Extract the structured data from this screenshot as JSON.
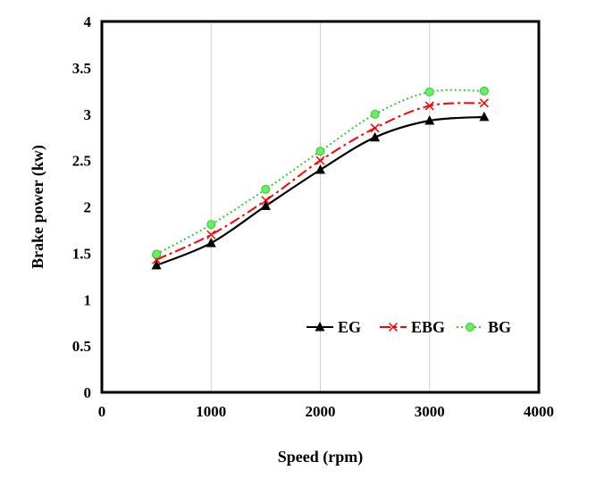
{
  "chart_data": {
    "type": "line",
    "xlabel": "Speed (rpm)",
    "ylabel": "Brake power (kw)",
    "xlim": [
      0,
      4000
    ],
    "ylim": [
      0,
      4
    ],
    "x_ticks": [
      "0",
      "1000",
      "2000",
      "3000",
      "4000"
    ],
    "y_ticks": [
      "0",
      "0.5",
      "1",
      "1.5",
      "2",
      "2.5",
      "3",
      "3.5",
      "4"
    ],
    "grid": "vertical",
    "legend_position": "bottom-right",
    "x": [
      500,
      1000,
      1500,
      2000,
      2500,
      3000,
      3500
    ],
    "series": [
      {
        "name": "EG",
        "values": [
          1.37,
          1.61,
          2.01,
          2.4,
          2.75,
          2.93,
          2.97
        ],
        "color": "#000000",
        "marker": "triangle",
        "line": "solid"
      },
      {
        "name": "EBG",
        "values": [
          1.43,
          1.7,
          2.07,
          2.5,
          2.85,
          3.09,
          3.12
        ],
        "color": "#ff0000",
        "marker": "x",
        "line": "dash-dot"
      },
      {
        "name": "BG",
        "values": [
          1.49,
          1.81,
          2.19,
          2.6,
          3.0,
          3.24,
          3.25
        ],
        "color": "#33cc33",
        "marker_fill": "#66ee66",
        "marker": "circle",
        "line": "dotted"
      }
    ]
  }
}
